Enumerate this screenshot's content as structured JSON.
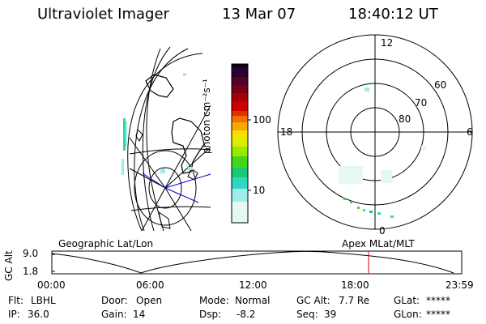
{
  "header": {
    "title": "Ultraviolet Imager",
    "date": "13 Mar 07",
    "time": "18:40:12 UT"
  },
  "colorbar": {
    "label": "photon cm⁻²s⁻¹",
    "ticks": [
      "100",
      "10"
    ],
    "colors": [
      "#0a0012",
      "#2a0030",
      "#55002a",
      "#7a0018",
      "#a5000a",
      "#cc0000",
      "#e03000",
      "#f07000",
      "#f8a800",
      "#f8e000",
      "#d8f000",
      "#98e800",
      "#40d818",
      "#18c878",
      "#30d8c0",
      "#a0ece8",
      "#e6f8f6"
    ]
  },
  "polar_plot": {
    "hour_labels": [
      "12",
      "18",
      "6",
      "0"
    ],
    "lat_labels": [
      "60",
      "70",
      "80"
    ]
  },
  "map_panel": {
    "label": "Geographic Lat/Lon"
  },
  "apex_panel": {
    "label": "Apex MLat/MLT"
  },
  "altitude_plot": {
    "ylabel": "GC Alt",
    "yticks": [
      "9.0",
      "1.8"
    ],
    "xticks": [
      "00:00",
      "06:00",
      "12:00",
      "18:00",
      "23:59"
    ],
    "marker_time": "18:40",
    "marker_color": "#dd0000"
  },
  "status": {
    "row1": {
      "flt_label": "Flt:",
      "flt_value": "LBHL",
      "door_label": "Door:",
      "door_value": "Open",
      "mode_label": "Mode:",
      "mode_value": "Normal",
      "gcalt_label": "GC Alt:",
      "gcalt_value": "7.7 Re",
      "glat_label": "GLat:",
      "glat_value": "*****"
    },
    "row2": {
      "ip_label": "IP:",
      "ip_value": "36.0",
      "gain_label": "Gain:",
      "gain_value": "14",
      "dsp_label": "Dsp:",
      "dsp_value": "-8.2",
      "seq_label": "Seq:",
      "seq_value": "39",
      "glon_label": "GLon:",
      "glon_value": "*****"
    }
  }
}
